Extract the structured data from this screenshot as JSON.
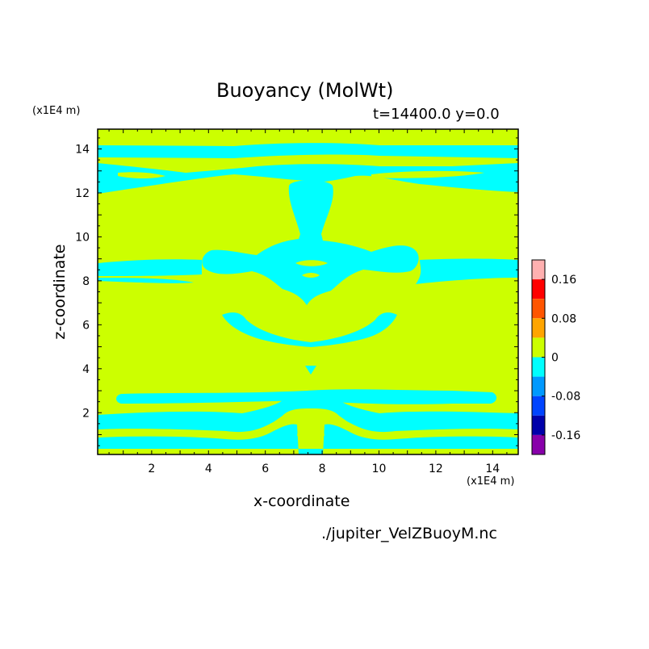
{
  "chart_data": {
    "type": "heatmap",
    "title": "Buoyancy (MolWt)",
    "subtitle": "t=14400.0 y=0.0",
    "xlabel": "x-coordinate",
    "ylabel": "z-coordinate",
    "x_unit": "(x1E4 m)",
    "z_unit": "(x1E4 m)",
    "xlim": [
      0.1,
      14.9
    ],
    "ylim": [
      0.1,
      14.9
    ],
    "x_ticks": [
      "2",
      "4",
      "6",
      "8",
      "10",
      "12",
      "14"
    ],
    "y_ticks": [
      "2",
      "4",
      "6",
      "8",
      "10",
      "12",
      "14"
    ],
    "colorbar": {
      "tick_labels": [
        "0.16",
        "0.08",
        "0",
        "-0.08",
        "-0.16"
      ],
      "levels": [
        {
          "range": [
            0.16,
            0.2
          ],
          "color": "#ffb0b0"
        },
        {
          "range": [
            0.12,
            0.16
          ],
          "color": "#ff0000"
        },
        {
          "range": [
            0.08,
            0.12
          ],
          "color": "#ff5500"
        },
        {
          "range": [
            0.04,
            0.08
          ],
          "color": "#ffa500"
        },
        {
          "range": [
            0.0,
            0.04
          ],
          "color": "#ccff00"
        },
        {
          "range": [
            -0.04,
            0.0
          ],
          "color": "#00ffff"
        },
        {
          "range": [
            -0.08,
            -0.04
          ],
          "color": "#0099ff"
        },
        {
          "range": [
            -0.12,
            -0.08
          ],
          "color": "#0044ff"
        },
        {
          "range": [
            -0.16,
            -0.12
          ],
          "color": "#0000aa"
        },
        {
          "range": [
            -0.2,
            -0.16
          ],
          "color": "#8800aa"
        }
      ]
    },
    "background_level_color": "#ccff00",
    "negative_level_color": "#00ffff",
    "source": "./jupiter_VelZBuoyM.nc"
  }
}
